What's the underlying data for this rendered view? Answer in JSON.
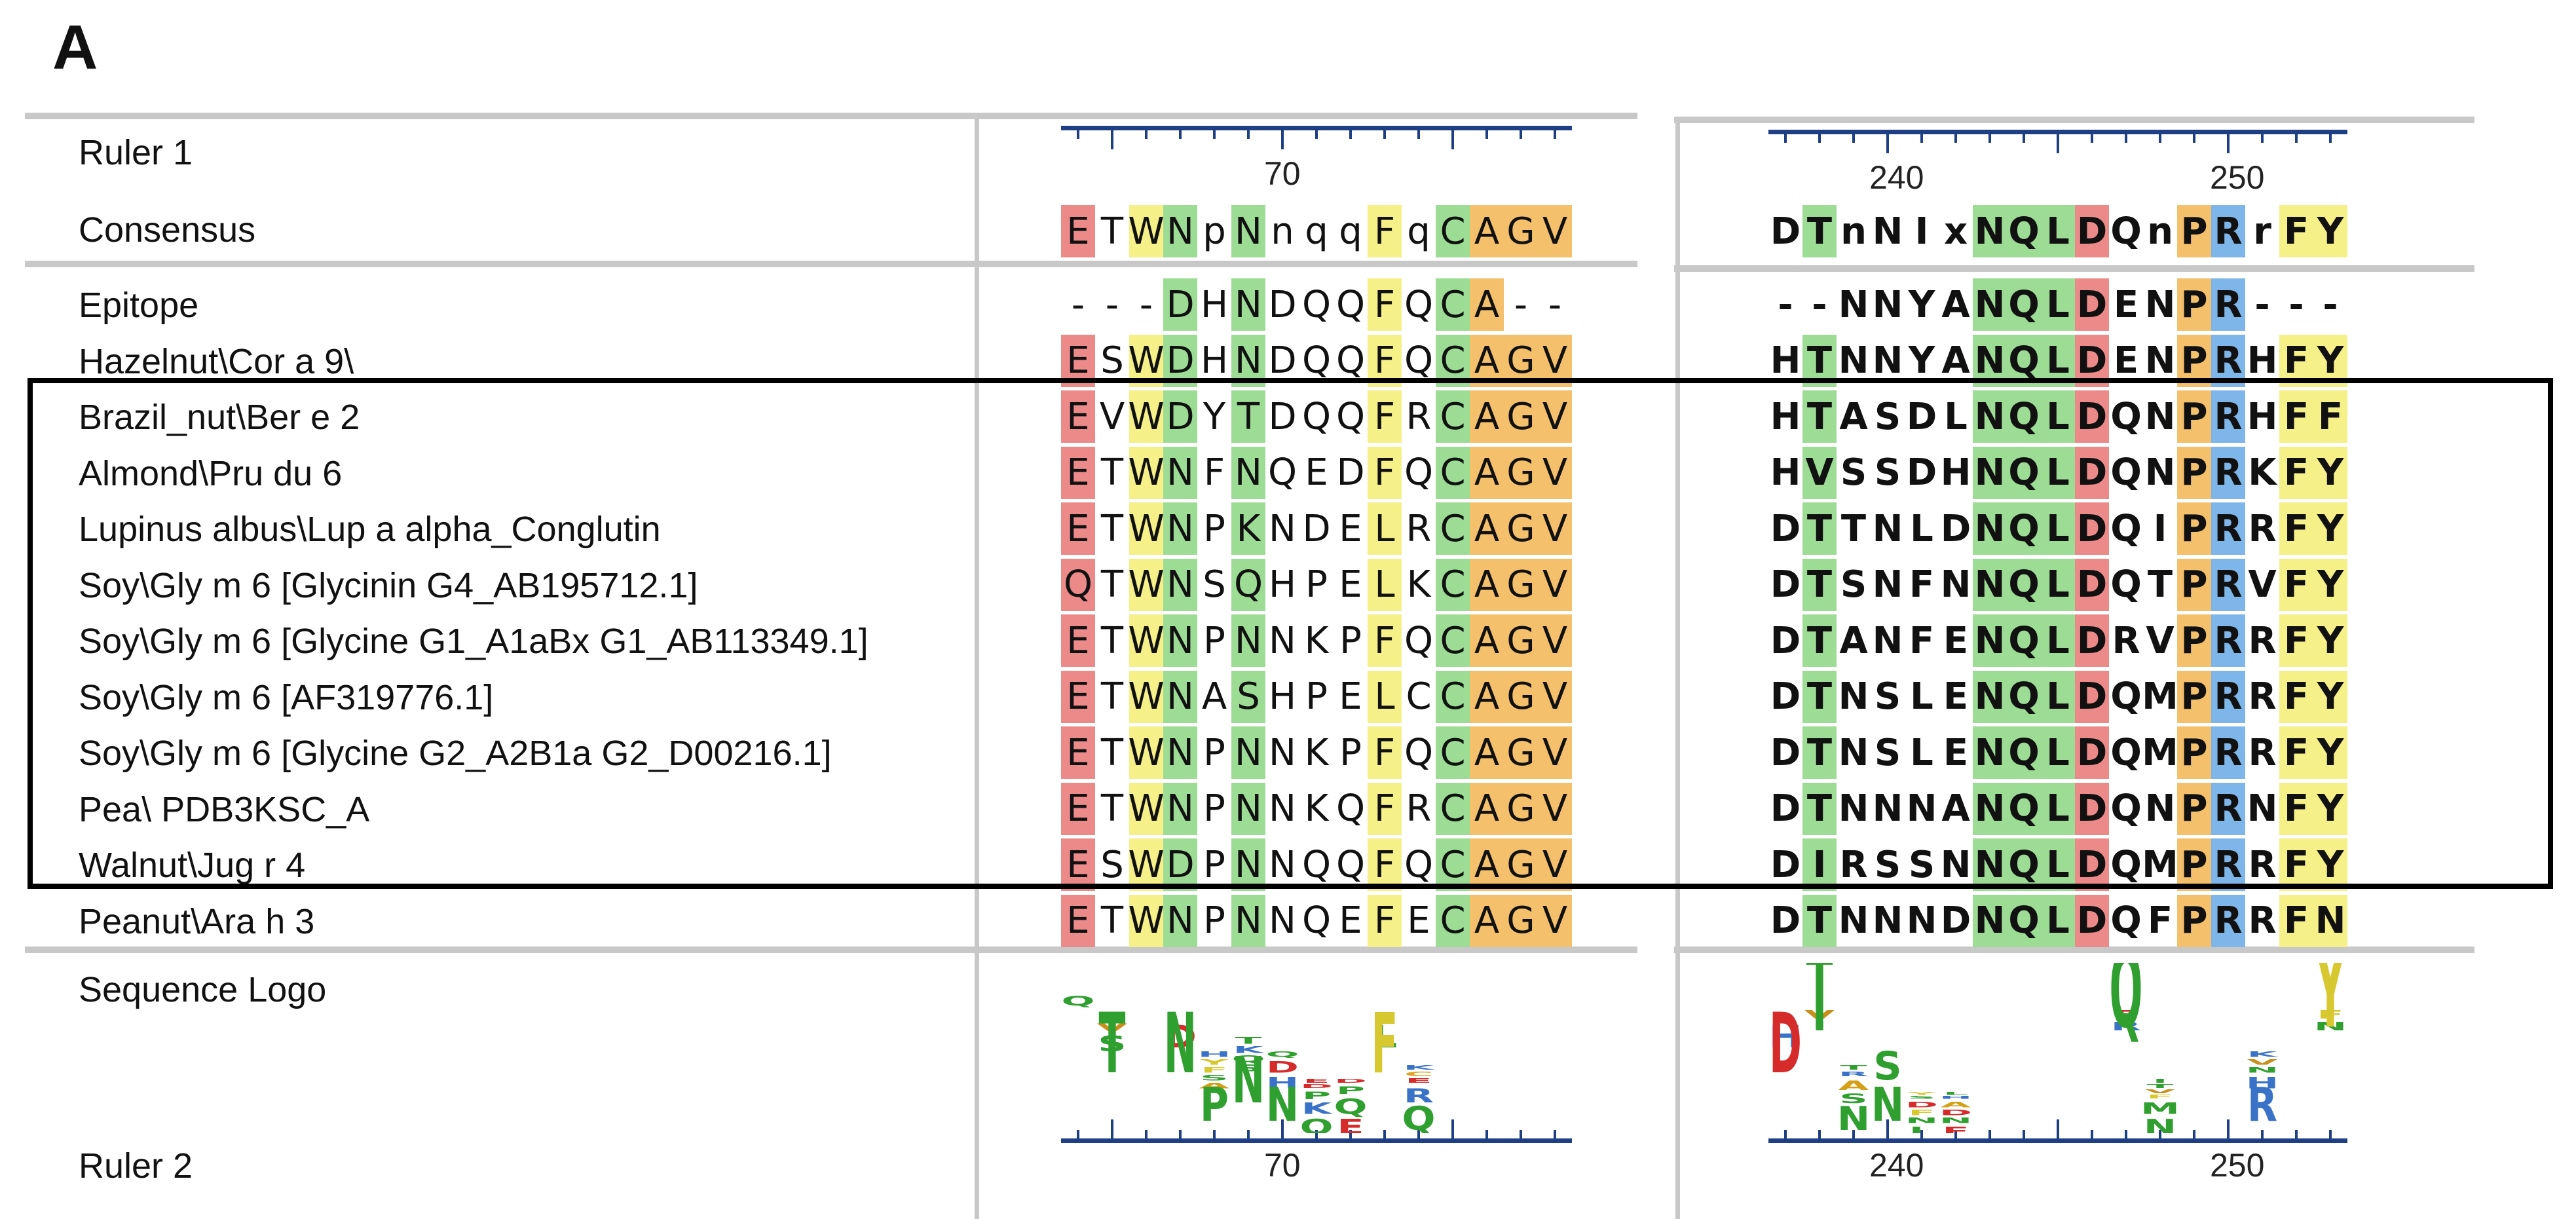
{
  "panel_label": "A",
  "labels": {
    "ruler1": "Ruler 1",
    "consensus": "Consensus",
    "logo": "Sequence Logo",
    "ruler2": "Ruler 2"
  },
  "rulers": {
    "left_numbers": [
      "70"
    ],
    "right_numbers": [
      "240",
      "250"
    ]
  },
  "consensus": {
    "left": "ETWNpNnqqFqCAGV",
    "right": "DTnNIxNQLDQnPRrFY"
  },
  "sequences": [
    {
      "name": "Epitope",
      "left": "---DHNDQQFQCA--",
      "right": "--NNYANQLDENPR---"
    },
    {
      "name": "Hazelnut\\Cor a 9\\",
      "left": "ESWDHNDQQFQCAGV",
      "right": "HTNNYANQLDENPRHFY"
    },
    {
      "name": "Brazil_nut\\Ber e 2",
      "left": "EVWDYTDQQFRCAGV",
      "right": "HTASDLNQLDQNPRHFF"
    },
    {
      "name": "Almond\\Pru du 6",
      "left": "ETWNFNQEDFQCAGV",
      "right": "HVSSDHNQLDQNPRKFY"
    },
    {
      "name": "Lupinus albus\\Lup a alpha_Conglutin",
      "left": "ETWNPKNDELRCAGV",
      "right": "DTTNLDNQLDQIPRRFY"
    },
    {
      "name": "Soy\\Gly m 6 [Glycinin G4_AB195712.1]",
      "left": "QTWNSQHPELKCAGV",
      "right": "DTSNFNNQLDQTPRVFY"
    },
    {
      "name": "Soy\\Gly m 6 [Glycine G1_A1aBx G1_AB113349.1]",
      "left": "ETWNPNNKPFQCAGV",
      "right": "DTANFENQLDRVPRRFY"
    },
    {
      "name": "Soy\\Gly m 6 [AF319776.1]",
      "left": "ETWNASHPELCCAGV",
      "right": "DTNSLENQLDQMPRRFY"
    },
    {
      "name": "Soy\\Gly m 6 [Glycine G2_A2B1a G2_D00216.1]",
      "left": "ETWNPNNKPFQCAGV",
      "right": "DTNSLENQLDQMPRRFY"
    },
    {
      "name": "Pea\\ PDB3KSC_A",
      "left": "ETWNPNNKQFRCAGV",
      "right": "DTNNNANQLDQNPRNFY"
    },
    {
      "name": "Walnut\\Jug r 4",
      "left": "ESWDPNNQQFQCAGV",
      "right": "DIRSSNNQLDQMPRRFY"
    },
    {
      "name": "Peanut\\Ara h 3",
      "left": "ETWNPNNQEFECAGV",
      "right": "DTNNNDNQLDQFPRRFN"
    }
  ],
  "colors": {
    "red": "#ec8a8a",
    "green": "#9ddc95",
    "yellow": "#f6f089",
    "orange": "#f4c06b",
    "blue": "#7eb6ea",
    "ruler": "#1f3f84",
    "divider": "#c8c8c8",
    "highlight_box": "#000000"
  }
}
